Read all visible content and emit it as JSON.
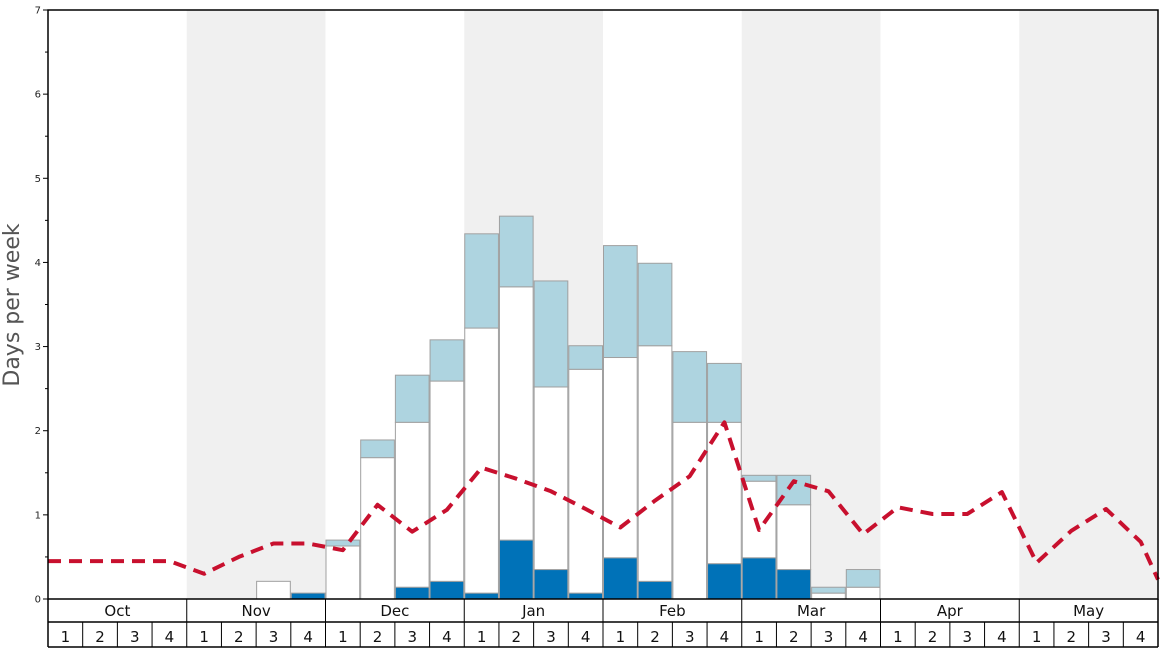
{
  "chart_data": {
    "type": "bar",
    "ylabel": "Days per week",
    "ylim": [
      0,
      7
    ],
    "y_ticks": [
      "0",
      "1",
      "2",
      "3",
      "4",
      "5",
      "6",
      "7"
    ],
    "months": [
      "Oct",
      "Nov",
      "Dec",
      "Jan",
      "Feb",
      "Mar",
      "Apr",
      "May"
    ],
    "week_labels": [
      "1",
      "2",
      "3",
      "4"
    ],
    "shaded_months": [
      "Nov",
      "Jan",
      "Mar",
      "May"
    ],
    "categories": [
      "Oct 1",
      "Oct 2",
      "Oct 3",
      "Oct 4",
      "Nov 1",
      "Nov 2",
      "Nov 3",
      "Nov 4",
      "Dec 1",
      "Dec 2",
      "Dec 3",
      "Dec 4",
      "Jan 1",
      "Jan 2",
      "Jan 3",
      "Jan 4",
      "Feb 1",
      "Feb 2",
      "Feb 3",
      "Feb 4",
      "Mar 1",
      "Mar 2",
      "Mar 3",
      "Mar 4",
      "Apr 1",
      "Apr 2",
      "Apr 3",
      "Apr 4",
      "May 1",
      "May 2",
      "May 3",
      "May 4"
    ],
    "series": [
      {
        "color": "#0072b8",
        "values": [
          0,
          0,
          0,
          0,
          0,
          0,
          0,
          0.07,
          0,
          0,
          0.14,
          0.21,
          0.07,
          0.7,
          0.35,
          0.07,
          0.49,
          0.21,
          0,
          0.42,
          0.49,
          0.35,
          0,
          0,
          0,
          0,
          0,
          0,
          0,
          0,
          0,
          0
        ]
      },
      {
        "color": "#ffffff",
        "values": [
          0,
          0,
          0,
          0,
          0,
          0,
          0.21,
          0,
          0.63,
          1.68,
          1.96,
          2.38,
          3.15,
          3.01,
          2.17,
          2.66,
          2.38,
          2.8,
          2.1,
          1.68,
          0.91,
          0.77,
          0.07,
          0.14,
          0,
          0,
          0,
          0,
          0,
          0,
          0,
          0
        ]
      },
      {
        "color": "#aed4e0",
        "values": [
          0,
          0,
          0,
          0,
          0,
          0,
          0,
          0,
          0.07,
          0.21,
          0.56,
          0.49,
          1.12,
          0.84,
          1.26,
          0.28,
          1.33,
          0.98,
          0.84,
          0.7,
          0.07,
          0.35,
          0.07,
          0.21,
          0,
          0,
          0,
          0,
          0,
          0,
          0,
          0
        ]
      }
    ],
    "average_line": {
      "color": "#c8102e",
      "style": "dashed",
      "values": [
        0.45,
        0.45,
        0.45,
        0.45,
        0.3,
        0.5,
        0.66,
        0.66,
        0.58,
        1.12,
        0.8,
        1.06,
        1.56,
        1.43,
        1.28,
        1.07,
        0.85,
        1.17,
        1.46,
        2.1,
        0.82,
        1.4,
        1.28,
        0.77,
        1.09,
        1.01,
        1.01,
        1.27,
        0.43,
        0.81,
        1.07,
        0.68
      ]
    },
    "line_end_value": 0.23,
    "grid": false,
    "legend": "none"
  }
}
